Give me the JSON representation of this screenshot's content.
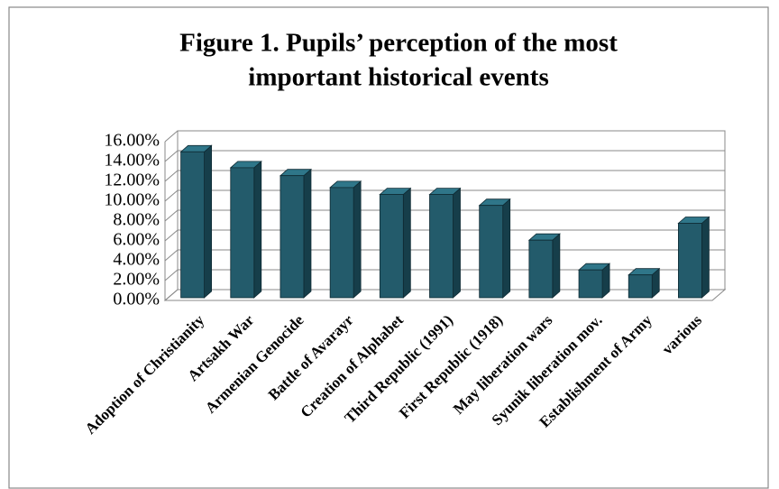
{
  "chart_data": {
    "type": "bar3d",
    "title": "Figure 1. Pupils’ perception of the most important historical events",
    "title_lines": [
      "Figure 1. Pupils’ perception of the most",
      "important historical events"
    ],
    "categories": [
      "Adoption of Christianity",
      "Artsakh War",
      "Armenian Genocide",
      "Battle of Avarayr",
      "Creation of Alphabet",
      "Third Republic (1991)",
      "First Republic (1918)",
      "May liberation wars",
      "Syunik liberation mov.",
      "Establishment of Army",
      "various"
    ],
    "values": [
      14.7,
      13.1,
      12.3,
      11.1,
      10.4,
      10.4,
      9.3,
      5.8,
      2.8,
      2.3,
      7.5
    ],
    "color": "#235b6b",
    "ylim": [
      0,
      16
    ],
    "yticks": [
      {
        "value": 0,
        "label": "0.00%"
      },
      {
        "value": 2,
        "label": "2.00%"
      },
      {
        "value": 4,
        "label": "4.00%"
      },
      {
        "value": 6,
        "label": "6.00%"
      },
      {
        "value": 8,
        "label": "8.00%"
      },
      {
        "value": 10,
        "label": "10.00%"
      },
      {
        "value": 12,
        "label": "12.00%"
      },
      {
        "value": 14,
        "label": "14.00%"
      },
      {
        "value": 16,
        "label": "16.00%"
      }
    ],
    "grid": true
  }
}
